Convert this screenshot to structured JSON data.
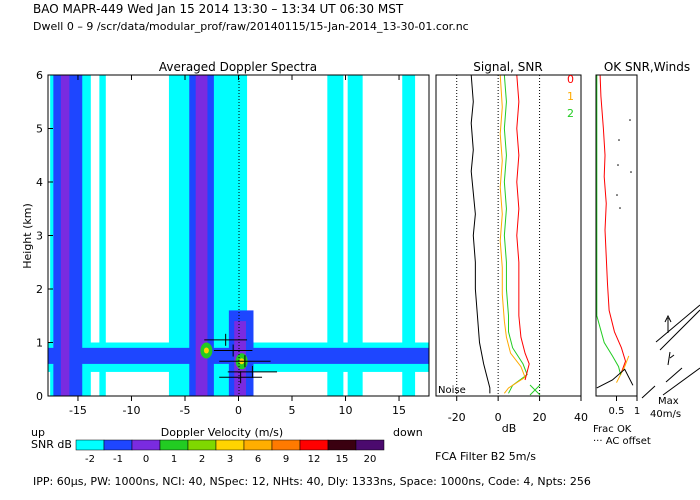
{
  "header": {
    "line1": "BAO   MAPR-449   Wed Jan 15 2014 13:30 – 13:34 UT 06:30 MST",
    "line2": "Dwell   0 –   9    /scr/data/modular_prof/raw/20140115/15-Jan-2014_13-30-01.cor.nc"
  },
  "footer": {
    "line": "IPP:  60μs,   PW: 1000ns,   NCI:  40,   NSpec: 12,  NHts: 40,   Dly: 1333ns,   Space: 1000ns,   Code: 4,   Npts: 256"
  },
  "colors": {
    "sky": "#00ffff",
    "blue": "#1e46ff",
    "purple": "#7a2be0",
    "navy": "#0a0a9a",
    "green": "#22cc22",
    "yellow": "#ffd400",
    "orange": "#ff9900",
    "red": "#ff0000"
  },
  "chart_data": [
    {
      "type": "heatmap",
      "title": "Averaged Doppler Spectra",
      "xlabel": "Doppler Velocity (m/s)",
      "ylabel": "Height (km)",
      "x_left_note": "up",
      "x_right_note": "down",
      "xlim": [
        -17.8,
        17.8
      ],
      "ylim": [
        0,
        6
      ],
      "xticks": [
        -15,
        -10,
        -5,
        0,
        5,
        10,
        15
      ],
      "yticks": [
        0,
        1,
        2,
        3,
        4,
        5,
        6
      ],
      "colorbar": {
        "label": "SNR dB",
        "ticks": [
          "-2",
          "-1",
          "0",
          "1",
          "2",
          "3",
          "6",
          "9",
          "12",
          "15",
          "20"
        ],
        "colors": [
          "#00ffff",
          "#1e46ff",
          "#7a2be0",
          "#22cc22",
          "#7fd800",
          "#ffd400",
          "#ffae00",
          "#ff7a00",
          "#ff0000",
          "#3a0010",
          "#4b0a6e"
        ]
      },
      "bands": [
        {
          "x": [
            -16.6,
            -15.8
          ],
          "level": "purple"
        },
        {
          "x": [
            -4.0,
            -2.9
          ],
          "level": "purple"
        },
        {
          "x": [
            -0.4,
            0.7
          ],
          "level": "purple",
          "y": [
            0,
            1.4
          ]
        },
        {
          "x": [
            -17.3,
            -14.6
          ],
          "level": "blue"
        },
        {
          "x": [
            -4.6,
            -2.3
          ],
          "level": "blue"
        },
        {
          "x": [
            -0.9,
            1.4
          ],
          "level": "blue",
          "y": [
            0,
            1.6
          ]
        },
        {
          "x": [
            -17.6,
            -13.8
          ],
          "level": "sky"
        },
        {
          "x": [
            -13.0,
            -12.4
          ],
          "level": "sky"
        },
        {
          "x": [
            -6.5,
            0.8
          ],
          "level": "sky"
        },
        {
          "x": [
            8.3,
            9.8
          ],
          "level": "sky"
        },
        {
          "x": [
            10.2,
            11.6
          ],
          "level": "sky"
        },
        {
          "x": [
            15.3,
            16.5
          ],
          "level": "sky"
        },
        {
          "x": [
            -17.8,
            17.8
          ],
          "level": "sky",
          "y": [
            0.45,
            1.0
          ]
        },
        {
          "x": [
            -17.8,
            17.8
          ],
          "level": "blue",
          "y": [
            0.6,
            0.9
          ]
        }
      ],
      "peaks": [
        {
          "x": -3.0,
          "y": 0.85,
          "level": "green"
        },
        {
          "x": 0.3,
          "y": 0.65,
          "level": "green"
        }
      ],
      "cross_markers": [
        {
          "x": -1.2,
          "y": 1.05,
          "err": 2.0
        },
        {
          "x": -0.5,
          "y": 0.85,
          "err": 1.8
        },
        {
          "x": 0.6,
          "y": 0.65,
          "err": 2.4
        },
        {
          "x": 1.3,
          "y": 0.45,
          "err": 2.3
        },
        {
          "x": 0.2,
          "y": 0.35,
          "err": 2.0
        }
      ]
    },
    {
      "type": "line",
      "title": "Signal, SNR",
      "xlabel": "dB",
      "xlim": [
        -30,
        40
      ],
      "ylim": [
        0,
        6
      ],
      "xticks": [
        -20,
        0,
        20,
        40
      ],
      "dotted_x": [
        -20,
        0,
        20
      ],
      "noise_label": "Noise",
      "legend": {
        "title": "0",
        "entries": [
          {
            "label": "0",
            "color": "#ff0000"
          },
          {
            "label": "1",
            "color": "#ffaa00"
          },
          {
            "label": "2",
            "color": "#22cc22"
          }
        ]
      },
      "series": [
        {
          "name": "Noise",
          "color": "#000000",
          "points": [
            [
              -13,
              6
            ],
            [
              -12,
              5.5
            ],
            [
              -13,
              5.1
            ],
            [
              -12,
              4.6
            ],
            [
              -13,
              4.2
            ],
            [
              -12,
              3.8
            ],
            [
              -11,
              3.4
            ],
            [
              -12,
              3.0
            ],
            [
              -11,
              2.5
            ],
            [
              -11,
              2.0
            ],
            [
              -10,
              1.5
            ],
            [
              -9,
              1.0
            ],
            [
              -7,
              0.6
            ],
            [
              -5,
              0.3
            ],
            [
              -4,
              0.15
            ],
            [
              -4,
              0.05
            ]
          ]
        },
        {
          "name": "2",
          "color": "#22cc22",
          "points": [
            [
              3,
              6
            ],
            [
              4,
              5.5
            ],
            [
              3,
              5.0
            ],
            [
              4,
              4.5
            ],
            [
              3,
              4.0
            ],
            [
              4,
              3.5
            ],
            [
              3,
              3.0
            ],
            [
              4,
              2.5
            ],
            [
              4,
              2.0
            ],
            [
              5,
              1.5
            ],
            [
              5,
              1.2
            ],
            [
              7,
              0.9
            ],
            [
              12,
              0.6
            ],
            [
              14,
              0.4
            ],
            [
              7,
              0.2
            ],
            [
              5,
              0.05
            ]
          ]
        },
        {
          "name": "1",
          "color": "#ffaa00",
          "points": [
            [
              1,
              6
            ],
            [
              2,
              5.4
            ],
            [
              1,
              4.9
            ],
            [
              2,
              4.4
            ],
            [
              1,
              3.9
            ],
            [
              2,
              3.4
            ],
            [
              1,
              2.9
            ],
            [
              2,
              2.4
            ],
            [
              2,
              1.9
            ],
            [
              3,
              1.4
            ],
            [
              4,
              1.1
            ],
            [
              6,
              0.8
            ],
            [
              11,
              0.55
            ],
            [
              13,
              0.35
            ],
            [
              5,
              0.15
            ],
            [
              3,
              0.05
            ]
          ]
        },
        {
          "name": "0",
          "color": "#ff0000",
          "points": [
            [
              9,
              6
            ],
            [
              10,
              5.5
            ],
            [
              9,
              5.0
            ],
            [
              10,
              4.5
            ],
            [
              9,
              4.0
            ],
            [
              10,
              3.5
            ],
            [
              9,
              3.0
            ],
            [
              10,
              2.5
            ],
            [
              10,
              2.0
            ],
            [
              10,
              1.5
            ],
            [
              11,
              1.1
            ],
            [
              13,
              0.8
            ],
            [
              15,
              0.6
            ],
            [
              13,
              0.3
            ]
          ]
        }
      ]
    },
    {
      "type": "line",
      "title": "OK SNR,Winds",
      "xlim": [
        0,
        1
      ],
      "ylim": [
        0,
        6
      ],
      "xticks": [
        "0.5",
        "1"
      ],
      "xlabel": "Frac OK",
      "offset_label": "AC offset",
      "series": [
        {
          "name": "0",
          "color": "#ff0000",
          "points": [
            [
              0.1,
              6
            ],
            [
              0.12,
              5.6
            ],
            [
              0.15,
              5.3
            ],
            [
              0.18,
              5.0
            ],
            [
              0.22,
              4.5
            ],
            [
              0.2,
              4.1
            ],
            [
              0.25,
              3.6
            ],
            [
              0.22,
              3.1
            ],
            [
              0.25,
              2.6
            ],
            [
              0.28,
              2.1
            ],
            [
              0.32,
              1.6
            ],
            [
              0.45,
              1.2
            ],
            [
              0.62,
              0.9
            ],
            [
              0.72,
              0.65
            ],
            [
              0.6,
              0.4
            ]
          ]
        },
        {
          "name": "1",
          "color": "#ffaa00",
          "points": [
            [
              0.5,
              0.25
            ],
            [
              0.7,
              0.55
            ],
            [
              0.8,
              0.75
            ],
            [
              0.7,
              0.55
            ]
          ]
        },
        {
          "name": "2",
          "color": "#22cc22",
          "points": [
            [
              0.02,
              6
            ],
            [
              0.02,
              5
            ],
            [
              0.02,
              4
            ],
            [
              0.02,
              3
            ],
            [
              0.02,
              2
            ],
            [
              0.02,
              1.5
            ],
            [
              0.2,
              1.0
            ],
            [
              0.4,
              0.75
            ],
            [
              0.55,
              0.55
            ],
            [
              0.6,
              0.4
            ]
          ]
        },
        {
          "name": "frac",
          "color": "#000000",
          "points": [
            [
              0.02,
              0.15
            ],
            [
              0.4,
              0.3
            ],
            [
              0.7,
              0.5
            ],
            [
              0.9,
              0.2
            ]
          ]
        }
      ],
      "wind_label": "Max",
      "wind_speed": "40m/s"
    }
  ],
  "filter_label": "FCA Filter B2   5m/s"
}
